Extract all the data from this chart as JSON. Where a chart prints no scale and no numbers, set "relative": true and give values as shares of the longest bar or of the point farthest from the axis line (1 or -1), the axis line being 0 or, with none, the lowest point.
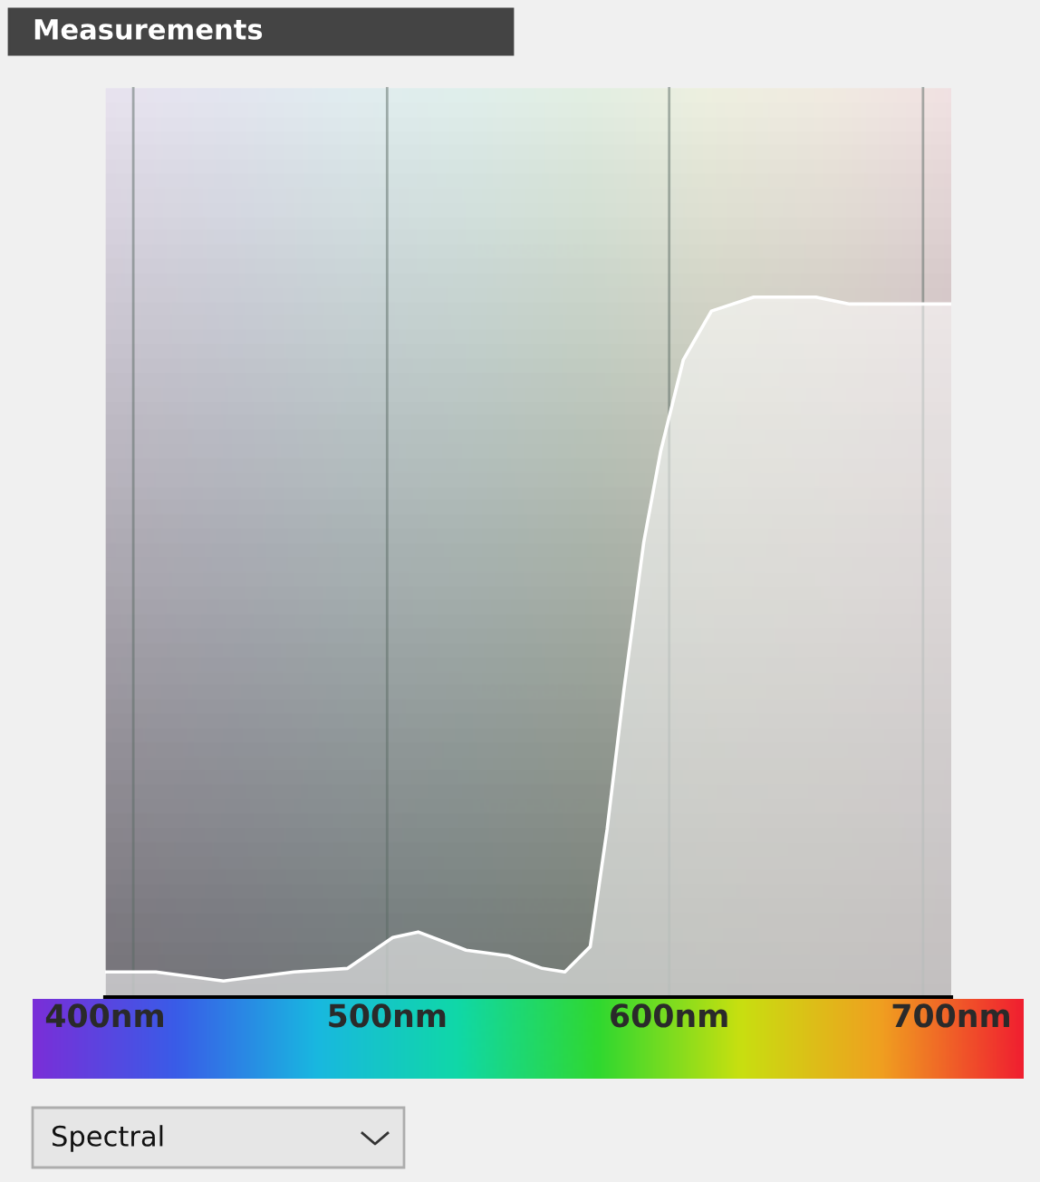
{
  "chart_data": {
    "type": "area",
    "title": "Measurements",
    "relative": true,
    "x": [
      400,
      418,
      442,
      467,
      486,
      502,
      511,
      528,
      543,
      555,
      563,
      572,
      578,
      584,
      591,
      597,
      605,
      615,
      630,
      652,
      664,
      700
    ],
    "series": [
      {
        "color": "#ffffff",
        "values": [
          0.036,
          0.036,
          0.023,
          0.036,
          0.041,
          0.085,
          0.093,
          0.067,
          0.059,
          0.041,
          0.036,
          0.072,
          0.24,
          0.44,
          0.65,
          0.78,
          0.91,
          0.98,
          1,
          1,
          0.99,
          0.99
        ]
      }
    ],
    "xlim": [
      400,
      700
    ],
    "xticks": [
      {
        "value": 400,
        "label": "400nm"
      },
      {
        "value": 500,
        "label": "500nm"
      },
      {
        "value": 600,
        "label": "600nm"
      },
      {
        "value": 700,
        "label": "700nm"
      }
    ],
    "ref_lines": [
      {
        "axis": "x",
        "value": 410,
        "color": "#5a6a64"
      },
      {
        "axis": "x",
        "value": 500,
        "color": "#5a6a64"
      },
      {
        "axis": "x",
        "value": 600,
        "color": "#5a6a64"
      },
      {
        "axis": "x",
        "value": 690,
        "color": "#5a6a64"
      }
    ],
    "grid": false,
    "legend": false,
    "annotations": [
      "Spectral"
    ]
  }
}
